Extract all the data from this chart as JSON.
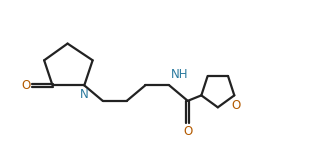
{
  "bg_color": "#ffffff",
  "line_color": "#222222",
  "N_color": "#2b7a9e",
  "O_color": "#b35a00",
  "bond_lw": 1.6,
  "font_size": 8.5,
  "fig_w": 3.19,
  "fig_h": 1.44,
  "dpi": 100,
  "xlim": [
    0.0,
    9.5
  ],
  "ylim": [
    0.5,
    4.5
  ]
}
